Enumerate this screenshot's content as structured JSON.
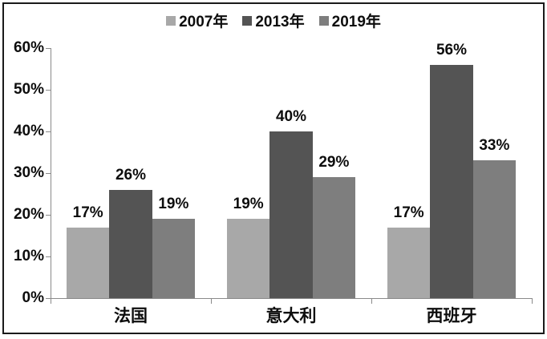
{
  "chart_data": {
    "type": "bar",
    "title": "",
    "categories": [
      "法国",
      "意大利",
      "西班牙"
    ],
    "series": [
      {
        "name": "2007年",
        "color": "#a8a8a8",
        "values": [
          17,
          19,
          17
        ],
        "labels": [
          "17%",
          "19%",
          "17%"
        ]
      },
      {
        "name": "2013年",
        "color": "#545454",
        "values": [
          26,
          40,
          56
        ],
        "labels": [
          "26%",
          "40%",
          "56%"
        ]
      },
      {
        "name": "2019年",
        "color": "#7e7e7e",
        "values": [
          19,
          29,
          33
        ],
        "labels": [
          "19%",
          "29%",
          "33%"
        ]
      }
    ],
    "ylim": [
      0,
      60
    ],
    "ytick_step": 10,
    "ytick_labels": [
      "0%",
      "10%",
      "20%",
      "30%",
      "40%",
      "50%",
      "60%"
    ],
    "value_suffix": "%",
    "grid": false,
    "legend_position": "top-center",
    "show_data_labels": true
  },
  "colors": {
    "background": "#ffffff",
    "frame_border": "#1a1a1a",
    "axis": "#8a8a8a",
    "text": "#0d0d0d"
  }
}
